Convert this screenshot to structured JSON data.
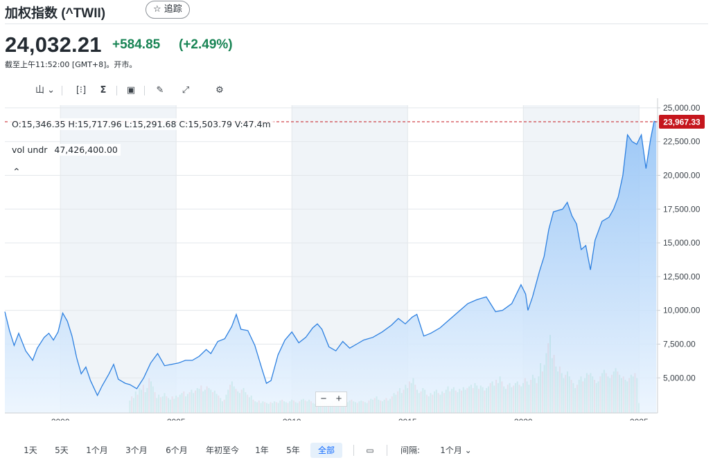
{
  "header": {
    "title": "加权指数 (^TWII)",
    "follow_label": "☆ 追踪"
  },
  "quote": {
    "price": "24,032.21",
    "change": "+584.85",
    "change_pct": "(+2.49%)",
    "as_of": "截至上午11:52:00 [GMT+8]。开市。"
  },
  "toolbar": {
    "chart_type": "山 ⌄",
    "compare": "[⁝]",
    "indicators": "Σ",
    "events": "▣",
    "draw": "✎",
    "fullscreen": "⤢",
    "settings": "⚙"
  },
  "ohlc": {
    "text": "O:15,346.35   H:15,717.96   L:15,291.68   C:15,503.79   V:47.4m"
  },
  "volume_label": {
    "name": "vol undr",
    "value": "47,426,400.00"
  },
  "collapse_label": "⌃",
  "zoom": {
    "minus": "−",
    "plus": "+"
  },
  "range_buttons": [
    "1天",
    "5天",
    "1个月",
    "3个月",
    "6个月",
    "年初至今",
    "1年",
    "5年",
    "全部"
  ],
  "active_range": "全部",
  "interval": {
    "calendar_icon": "▭",
    "label": "间隔:",
    "value": "1个月 ⌄"
  },
  "colors": {
    "line": "#2b7fe0",
    "area_top": "#8ec0f6",
    "area_bottom": "#eaf4fe",
    "vol_up": "#3fbf8a",
    "vol_down": "#ee7070",
    "price_tag": "#c5161d",
    "shade": "#f0f4f8"
  },
  "chart_data": {
    "type": "area",
    "x_ticks": [
      "2000",
      "2005",
      "2010",
      "2015",
      "2020",
      "2025"
    ],
    "y_ticks": [
      "25,000.00",
      "22,500.00",
      "20,000.00",
      "17,500.00",
      "15,000.00",
      "12,500.00",
      "10,000.00",
      "7,500.00",
      "5,000.00"
    ],
    "ylim": [
      2400,
      25200
    ],
    "xlim": [
      1997.6,
      2025.8
    ],
    "last_price_tag": "23,967.33",
    "last_price": 23967.33,
    "series": [
      {
        "x": [
          1997.6,
          1997.8,
          1998.0,
          1998.2,
          1998.5,
          1998.8,
          1999.0,
          1999.3,
          1999.5,
          1999.7,
          1999.9,
          2000.1,
          2000.3,
          2000.5,
          2000.7,
          2000.9,
          2001.1,
          2001.3,
          2001.6,
          2001.8,
          2002.1,
          2002.3,
          2002.5,
          2002.8,
          2003.0,
          2003.3,
          2003.6,
          2003.9,
          2004.2,
          2004.5,
          2004.8,
          2005.1,
          2005.4,
          2005.7,
          2006.0,
          2006.3,
          2006.5,
          2006.8,
          2007.1,
          2007.4,
          2007.6,
          2007.8,
          2008.1,
          2008.4,
          2008.7,
          2008.9,
          2009.1,
          2009.4,
          2009.7,
          2010.0,
          2010.3,
          2010.6,
          2010.9,
          2011.1,
          2011.3,
          2011.6,
          2011.9,
          2012.2,
          2012.5,
          2012.8,
          2013.1,
          2013.5,
          2013.9,
          2014.3,
          2014.6,
          2014.9,
          2015.2,
          2015.4,
          2015.7,
          2016.0,
          2016.4,
          2016.8,
          2017.2,
          2017.6,
          2018.0,
          2018.4,
          2018.8,
          2019.1,
          2019.5,
          2019.9,
          2020.1,
          2020.2,
          2020.4,
          2020.7,
          2020.9,
          2021.1,
          2021.3,
          2021.5,
          2021.7,
          2021.9,
          2022.1,
          2022.3,
          2022.5,
          2022.7,
          2022.9,
          2023.1,
          2023.4,
          2023.7,
          2023.9,
          2024.1,
          2024.3,
          2024.5,
          2024.7,
          2024.9,
          2025.1,
          2025.3,
          2025.5,
          2025.65,
          2025.75
        ],
        "y": [
          9900,
          8500,
          7400,
          8300,
          7000,
          6300,
          7200,
          8000,
          8300,
          7800,
          8400,
          9800,
          9200,
          8100,
          6500,
          5300,
          5800,
          4800,
          3700,
          4400,
          5300,
          6000,
          4900,
          4600,
          4500,
          4200,
          5000,
          6100,
          6800,
          5900,
          6000,
          6100,
          6300,
          6300,
          6600,
          7100,
          6800,
          7700,
          7900,
          8800,
          9700,
          8600,
          8500,
          7400,
          5700,
          4600,
          4800,
          6700,
          7800,
          8400,
          7600,
          8000,
          8700,
          9000,
          8600,
          7300,
          7000,
          7700,
          7200,
          7500,
          7800,
          8000,
          8400,
          8900,
          9400,
          9000,
          9500,
          9700,
          8100,
          8300,
          8700,
          9300,
          9900,
          10500,
          10800,
          11000,
          9900,
          10000,
          10500,
          11900,
          11200,
          10000,
          11000,
          12900,
          14000,
          16000,
          17300,
          17400,
          17500,
          18000,
          17000,
          16400,
          14500,
          14800,
          13000,
          15200,
          16600,
          16900,
          17500,
          18400,
          20000,
          23000,
          22500,
          22300,
          23000,
          20500,
          22700,
          24000,
          23967
        ]
      }
    ],
    "volume": {
      "x_start": 2003.0,
      "x_step": 0.0833,
      "values": [
        1.5,
        2.0,
        1.8,
        2.6,
        2.2,
        3.0,
        2.8,
        3.4,
        2.5,
        3.0,
        4.2,
        3.8,
        3.2,
        2.5,
        1.8,
        2.2,
        1.9,
        2.0,
        2.4,
        2.0,
        1.8,
        1.6,
        2.0,
        1.7,
        2.1,
        1.9,
        2.2,
        2.4,
        2.6,
        2.0,
        2.3,
        2.5,
        2.8,
        2.4,
        2.7,
        3.0,
        2.9,
        3.3,
        2.6,
        2.8,
        3.2,
        3.0,
        2.8,
        2.5,
        2.7,
        2.3,
        2.1,
        1.8,
        1.4,
        1.6,
        2.2,
        2.8,
        3.4,
        3.8,
        3.2,
        2.9,
        2.6,
        2.4,
        2.8,
        3.0,
        2.5,
        2.2,
        1.9,
        2.1,
        1.6,
        1.4,
        1.3,
        1.5,
        1.2,
        1.4,
        1.3,
        1.2,
        1.1,
        1.3,
        1.2,
        1.4,
        1.3,
        1.2,
        1.5,
        1.6,
        1.4,
        1.3,
        1.2,
        1.4,
        1.6,
        1.5,
        1.3,
        1.2,
        1.4,
        1.6,
        1.7,
        1.5,
        1.4,
        1.6,
        1.4,
        1.2,
        1.1,
        1.3,
        1.2,
        1.4,
        1.5,
        1.3,
        1.2,
        1.1,
        1.2,
        1.4,
        1.5,
        1.6,
        1.7,
        1.4,
        1.3,
        1.2,
        1.1,
        1.3,
        1.5,
        1.6,
        1.4,
        1.3,
        1.2,
        1.4,
        1.5,
        1.4,
        1.3,
        1.2,
        1.5,
        1.7,
        1.6,
        1.8,
        2.0,
        1.6,
        1.5,
        1.4,
        1.6,
        1.8,
        1.5,
        1.7,
        2.0,
        2.4,
        2.2,
        2.6,
        3.0,
        2.4,
        2.8,
        3.4,
        3.0,
        3.8,
        3.6,
        4.2,
        3.4,
        2.8,
        2.4,
        2.6,
        3.0,
        2.8,
        2.2,
        2.0,
        2.4,
        2.2,
        2.6,
        2.8,
        2.4,
        2.2,
        2.6,
        2.4,
        2.8,
        3.2,
        2.6,
        2.9,
        3.1,
        2.7,
        2.5,
        2.9,
        2.7,
        3.1,
        2.8,
        3.0,
        3.2,
        3.4,
        3.0,
        3.6,
        3.3,
        2.9,
        3.3,
        3.1,
        2.7,
        3.0,
        3.2,
        3.6,
        3.8,
        3.3,
        4.0,
        3.6,
        4.4,
        3.8,
        3.2,
        2.9,
        3.4,
        3.6,
        3.1,
        3.3,
        3.6,
        3.8,
        3.4,
        3.2,
        3.6,
        4.2,
        3.8,
        3.4,
        4.0,
        4.6,
        4.2,
        3.6,
        4.4,
        6.0,
        5.0,
        5.8,
        7.2,
        8.4,
        9.4,
        6.6,
        7.0,
        5.6,
        5.0,
        5.6,
        4.8,
        4.2,
        4.6,
        5.0,
        4.4,
        4.0,
        3.6,
        3.0,
        3.4,
        4.0,
        4.4,
        3.8,
        4.2,
        4.8,
        4.6,
        4.8,
        4.4,
        4.0,
        3.6,
        3.8,
        4.4,
        4.8,
        5.2,
        4.8,
        4.4,
        4.2,
        4.6,
        5.0,
        5.4,
        5.0,
        4.6,
        4.2,
        4.4,
        4.0,
        3.8,
        4.2,
        4.6,
        4.4,
        4.8,
        4.2,
        1.2
      ],
      "up_pattern": "alternating"
    }
  }
}
